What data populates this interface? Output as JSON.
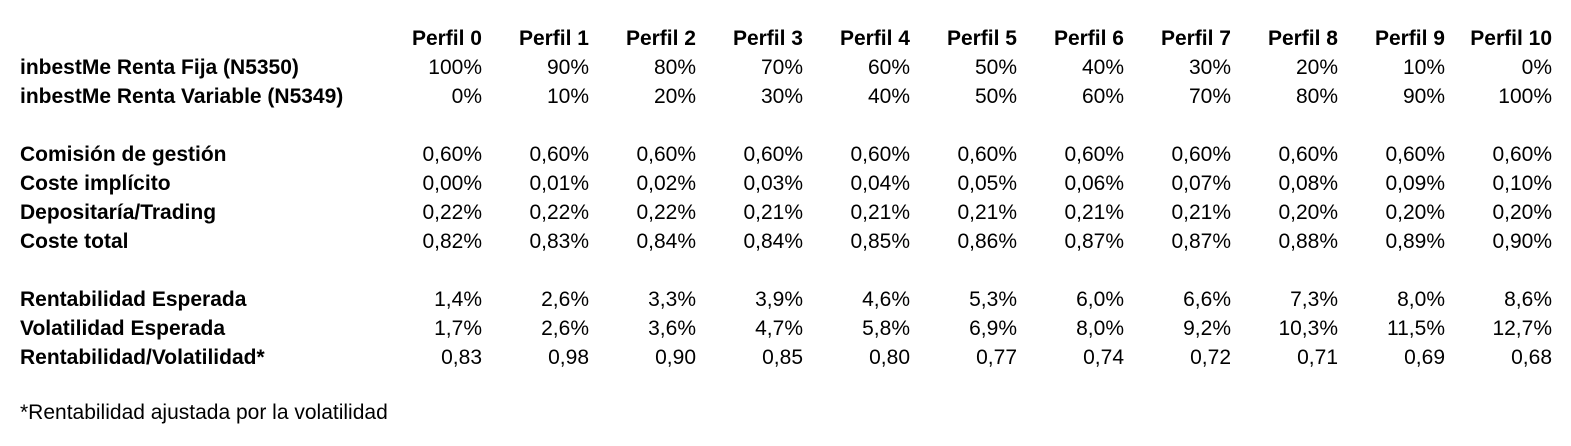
{
  "colors": {
    "text": "#000000",
    "background": "#ffffff"
  },
  "chart_data": {
    "type": "table",
    "columns": [
      "Perfil 0",
      "Perfil 1",
      "Perfil 2",
      "Perfil 3",
      "Perfil 4",
      "Perfil 5",
      "Perfil 6",
      "Perfil 7",
      "Perfil 8",
      "Perfil 9",
      "Perfil 10"
    ],
    "row_groups": [
      [
        {
          "label": "inbestMe Renta Fija (N5350)",
          "values": [
            "100%",
            "90%",
            "80%",
            "70%",
            "60%",
            "50%",
            "40%",
            "30%",
            "20%",
            "10%",
            "0%"
          ]
        },
        {
          "label": "inbestMe Renta Variable (N5349)",
          "values": [
            "0%",
            "10%",
            "20%",
            "30%",
            "40%",
            "50%",
            "60%",
            "70%",
            "80%",
            "90%",
            "100%"
          ]
        }
      ],
      [
        {
          "label": "Comisión de gestión",
          "values": [
            "0,60%",
            "0,60%",
            "0,60%",
            "0,60%",
            "0,60%",
            "0,60%",
            "0,60%",
            "0,60%",
            "0,60%",
            "0,60%",
            "0,60%"
          ]
        },
        {
          "label": "Coste implícito",
          "values": [
            "0,00%",
            "0,01%",
            "0,02%",
            "0,03%",
            "0,04%",
            "0,05%",
            "0,06%",
            "0,07%",
            "0,08%",
            "0,09%",
            "0,10%"
          ]
        },
        {
          "label": "Depositaría/Trading",
          "values": [
            "0,22%",
            "0,22%",
            "0,22%",
            "0,21%",
            "0,21%",
            "0,21%",
            "0,21%",
            "0,21%",
            "0,20%",
            "0,20%",
            "0,20%"
          ]
        },
        {
          "label": "Coste total",
          "values": [
            "0,82%",
            "0,83%",
            "0,84%",
            "0,84%",
            "0,85%",
            "0,86%",
            "0,87%",
            "0,87%",
            "0,88%",
            "0,89%",
            "0,90%"
          ]
        }
      ],
      [
        {
          "label": "Rentabilidad Esperada",
          "values": [
            "1,4%",
            "2,6%",
            "3,3%",
            "3,9%",
            "4,6%",
            "5,3%",
            "6,0%",
            "6,6%",
            "7,3%",
            "8,0%",
            "8,6%"
          ]
        },
        {
          "label": "Volatilidad Esperada",
          "values": [
            "1,7%",
            "2,6%",
            "3,6%",
            "4,7%",
            "5,8%",
            "6,9%",
            "8,0%",
            "9,2%",
            "10,3%",
            "11,5%",
            "12,7%"
          ]
        },
        {
          "label": "Rentabilidad/Volatilidad*",
          "values": [
            "0,83",
            "0,98",
            "0,90",
            "0,85",
            "0,80",
            "0,77",
            "0,74",
            "0,72",
            "0,71",
            "0,69",
            "0,68"
          ]
        }
      ]
    ],
    "footnote": "*Rentabilidad ajustada por la volatilidad"
  }
}
